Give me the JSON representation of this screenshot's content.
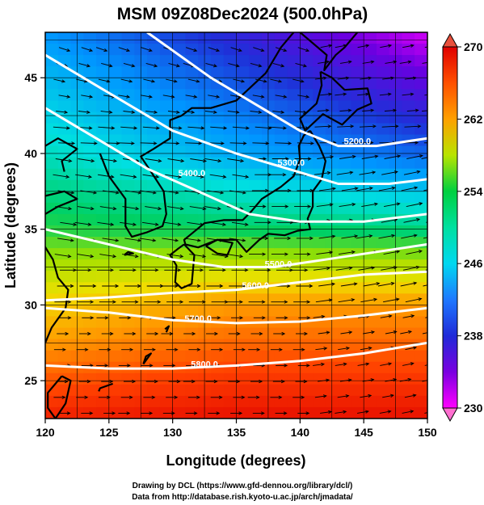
{
  "chart_data": {
    "type": "heatmap",
    "title": "MSM 09Z08Dec2024 (500.0hPa)",
    "xlabel": "Longitude (degrees)",
    "ylabel": "Latitude  (degrees)",
    "xlim": [
      120,
      150
    ],
    "ylim": [
      22.5,
      48
    ],
    "xticks": [
      "120",
      "125",
      "130",
      "135",
      "140",
      "145",
      "150"
    ],
    "yticks": [
      "25",
      "30",
      "35",
      "40",
      "45"
    ],
    "colorbar": {
      "min": 230,
      "max": 270,
      "ticks": [
        "230",
        "238",
        "246",
        "254",
        "262",
        "270"
      ],
      "colors": [
        "#ff00ff",
        "#6a00e0",
        "#1f30d8",
        "#0096ff",
        "#00e0e0",
        "#00d060",
        "#9be000",
        "#f0e000",
        "#ff9a00",
        "#ff4000",
        "#e00000"
      ]
    },
    "temperature_field_K": {
      "description_levels": [
        {
          "lat": 48,
          "values_at_lon_120_135_150": [
            242,
            237,
            231
          ]
        },
        {
          "lat": 40,
          "values_at_lon_120_135_150": [
            247,
            243,
            240
          ]
        },
        {
          "lat": 35,
          "values_at_lon_120_135_150": [
            251,
            250,
            249
          ]
        },
        {
          "lat": 30,
          "values_at_lon_120_135_150": [
            259,
            262,
            262
          ]
        },
        {
          "lat": 22.5,
          "values_at_lon_120_135_150": [
            268,
            269,
            269
          ]
        }
      ]
    },
    "height_contours_m": [
      {
        "label": "5200.0",
        "lon": [
          128,
          133,
          137,
          140,
          143,
          146,
          150
        ],
        "lat": [
          48,
          45,
          43,
          41.5,
          40.5,
          40.5,
          41
        ]
      },
      {
        "label": "5300.0",
        "lon": [
          120,
          125,
          130,
          135,
          139,
          143,
          147,
          150
        ],
        "lat": [
          46.5,
          44,
          41.5,
          40,
          39,
          38,
          38,
          38.3
        ]
      },
      {
        "label": "5400.0",
        "lon": [
          120,
          124,
          128,
          132,
          136,
          140,
          145,
          150
        ],
        "lat": [
          43,
          41,
          39,
          37.5,
          36,
          35.5,
          35.5,
          36
        ]
      },
      {
        "label": "5500.0",
        "lon": [
          120,
          125,
          130,
          134,
          138,
          142,
          146,
          150
        ],
        "lat": [
          35,
          34,
          33,
          32.5,
          32.5,
          33,
          33.5,
          34
        ]
      },
      {
        "label": "5600.0",
        "lon": [
          120,
          125,
          130,
          135,
          140,
          145,
          150
        ],
        "lat": [
          30.3,
          30.5,
          30.8,
          31,
          31.5,
          32,
          32.2
        ]
      },
      {
        "label": "5700.0",
        "lon": [
          120,
          125,
          130,
          135,
          140,
          145,
          150
        ],
        "lat": [
          29.8,
          29.5,
          29,
          28.8,
          28.9,
          29.3,
          29.8
        ]
      },
      {
        "label": "5800.0",
        "lon": [
          120,
          125,
          130,
          135,
          140,
          145,
          150
        ],
        "lat": [
          26,
          25.8,
          25.8,
          26,
          26.3,
          26.8,
          27.5
        ]
      }
    ],
    "grid": true,
    "wind_vectors": "eastward flow, curving south-east in the north and north-east in the east"
  },
  "credits": {
    "line1": "Drawing by DCL (https://www.gfd-dennou.org/library/dcl/)",
    "line2": "Data from http://database.rish.kyoto-u.ac.jp/arch/jmadata/"
  }
}
